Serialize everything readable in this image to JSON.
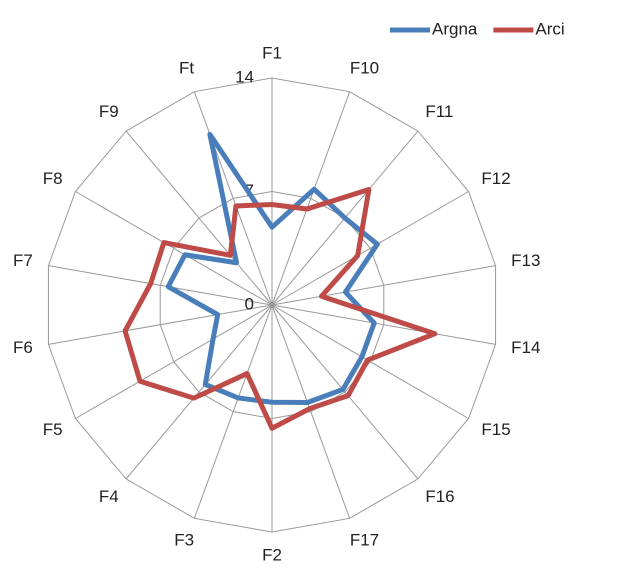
{
  "chart_data": {
    "type": "radar",
    "categories": [
      "F1",
      "F10",
      "F11",
      "F12",
      "F13",
      "F14",
      "F15",
      "F16",
      "F17",
      "F2",
      "F3",
      "F4",
      "F5",
      "F6",
      "F7",
      "F8",
      "F9",
      "Ft"
    ],
    "series": [
      {
        "name": "Argna",
        "color": "#4a7ebb",
        "values": [
          4.8,
          7.6,
          7,
          7.5,
          4.6,
          6.4,
          6.4,
          6.8,
          6.4,
          6,
          6.1,
          6.4,
          4.2,
          3.4,
          6.5,
          6.2,
          3.4,
          11.2
        ]
      },
      {
        "name": "Arci",
        "color": "#be4b48",
        "values": [
          6.2,
          6.3,
          9.3,
          6.1,
          3.1,
          10.2,
          6.8,
          7.3,
          6.8,
          7.6,
          4.5,
          7.5,
          9.4,
          9.2,
          7.6,
          7.7,
          4,
          6.5
        ]
      }
    ],
    "ylim": [
      0,
      14
    ],
    "yticks": [
      0,
      7,
      14
    ],
    "grid": true,
    "legend": "top-right"
  }
}
